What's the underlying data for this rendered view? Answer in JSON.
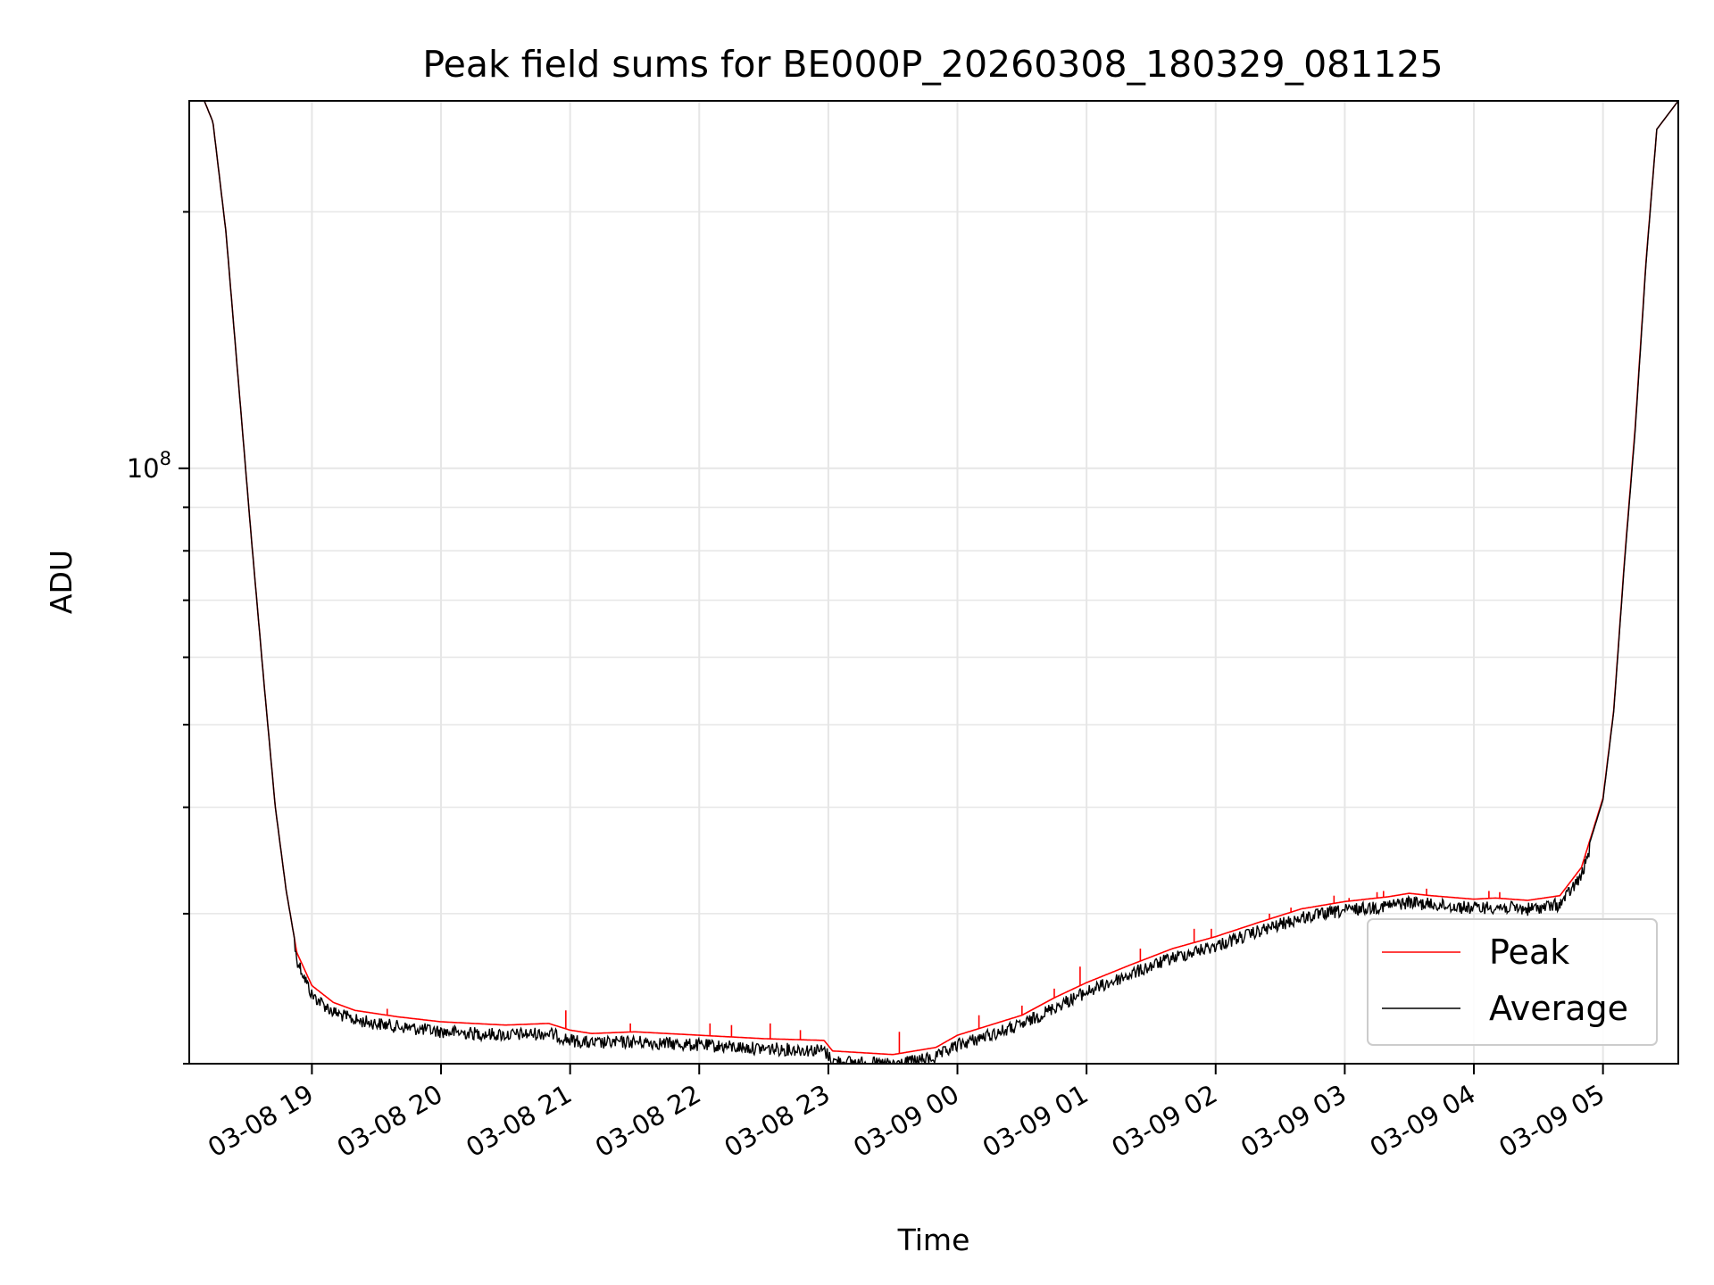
{
  "chart_data": {
    "type": "line",
    "title": "Peak field sums for BE000P_20260308_180329_081125",
    "xlabel": "Time",
    "ylabel": "ADU",
    "y_scale": "log",
    "y_tick_label": "10^8",
    "y_tick_base": "10",
    "y_tick_exp": "8",
    "xlim": [
      "2026-03-08 18:03",
      "2026-03-09 05:35"
    ],
    "ylim": [
      20000000,
      270000000
    ],
    "x_tick_labels": [
      "03-08 19",
      "03-08 20",
      "03-08 21",
      "03-08 22",
      "03-08 23",
      "03-09 00",
      "03-09 01",
      "03-09 02",
      "03-09 03",
      "03-09 04",
      "03-09 05"
    ],
    "x_ticks": [
      "2026-03-08 19:00",
      "2026-03-08 20:00",
      "2026-03-08 21:00",
      "2026-03-08 22:00",
      "2026-03-08 23:00",
      "2026-03-09 00:00",
      "2026-03-09 01:00",
      "2026-03-09 02:00",
      "2026-03-09 03:00",
      "2026-03-09 04:00",
      "2026-03-09 05:00"
    ],
    "grid": true,
    "legend_position": "lower-right",
    "series": [
      {
        "name": "Peak",
        "color": "#ff0000",
        "x": [
          "2026-03-08 18:03",
          "2026-03-08 18:10",
          "2026-03-08 18:14",
          "2026-03-08 18:20",
          "2026-03-08 18:26",
          "2026-03-08 18:32",
          "2026-03-08 18:38",
          "2026-03-08 18:43",
          "2026-03-08 18:48",
          "2026-03-08 18:53",
          "2026-03-08 19:00",
          "2026-03-08 19:10",
          "2026-03-08 19:20",
          "2026-03-08 19:40",
          "2026-03-08 20:00",
          "2026-03-08 20:30",
          "2026-03-08 20:50",
          "2026-03-08 21:00",
          "2026-03-08 21:10",
          "2026-03-08 21:30",
          "2026-03-08 22:00",
          "2026-03-08 22:30",
          "2026-03-08 22:58",
          "2026-03-08 23:02",
          "2026-03-08 23:30",
          "2026-03-08 23:50",
          "2026-03-09 00:00",
          "2026-03-09 00:30",
          "2026-03-09 00:45",
          "2026-03-09 01:00",
          "2026-03-09 01:20",
          "2026-03-09 01:40",
          "2026-03-09 02:00",
          "2026-03-09 02:20",
          "2026-03-09 02:40",
          "2026-03-09 03:00",
          "2026-03-09 03:20",
          "2026-03-09 03:30",
          "2026-03-09 03:40",
          "2026-03-09 04:00",
          "2026-03-09 04:10",
          "2026-03-09 04:25",
          "2026-03-09 04:40",
          "2026-03-09 04:50",
          "2026-03-09 05:00",
          "2026-03-09 05:05",
          "2026-03-09 05:10",
          "2026-03-09 05:15",
          "2026-03-09 05:20",
          "2026-03-09 05:25",
          "2026-03-09 05:35"
        ],
        "values": [
          270000000,
          270000000,
          255000000,
          190000000,
          125000000,
          82000000,
          55000000,
          40000000,
          32000000,
          27000000,
          24700000,
          23600000,
          23100000,
          22700000,
          22400000,
          22200000,
          22300000,
          21900000,
          21700000,
          21800000,
          21600000,
          21400000,
          21300000,
          20700000,
          20500000,
          20900000,
          21600000,
          22800000,
          23900000,
          24900000,
          26100000,
          27300000,
          28200000,
          29300000,
          30400000,
          31000000,
          31400000,
          31700000,
          31500000,
          31200000,
          31300000,
          31100000,
          31500000,
          34000000,
          41000000,
          52000000,
          78000000,
          112000000,
          175000000,
          250000000,
          270000000
        ],
        "spikes": [
          {
            "x": "2026-03-08 19:35",
            "y": 23200000
          },
          {
            "x": "2026-03-08 20:58",
            "y": 23100000
          },
          {
            "x": "2026-03-08 21:28",
            "y": 22300000
          },
          {
            "x": "2026-03-08 22:05",
            "y": 22300000
          },
          {
            "x": "2026-03-08 22:15",
            "y": 22200000
          },
          {
            "x": "2026-03-08 22:33",
            "y": 22300000
          },
          {
            "x": "2026-03-08 22:47",
            "y": 21900000
          },
          {
            "x": "2026-03-08 23:33",
            "y": 21800000
          },
          {
            "x": "2026-03-09 00:10",
            "y": 22800000
          },
          {
            "x": "2026-03-09 00:30",
            "y": 23400000
          },
          {
            "x": "2026-03-09 00:45",
            "y": 24500000
          },
          {
            "x": "2026-03-09 00:57",
            "y": 26000000
          },
          {
            "x": "2026-03-09 01:25",
            "y": 27300000
          },
          {
            "x": "2026-03-09 01:50",
            "y": 28800000
          },
          {
            "x": "2026-03-09 01:58",
            "y": 28800000
          },
          {
            "x": "2026-03-09 02:25",
            "y": 30000000
          },
          {
            "x": "2026-03-09 02:35",
            "y": 30500000
          },
          {
            "x": "2026-03-09 02:55",
            "y": 31500000
          },
          {
            "x": "2026-03-09 03:02",
            "y": 31300000
          },
          {
            "x": "2026-03-09 03:15",
            "y": 31800000
          },
          {
            "x": "2026-03-09 03:18",
            "y": 31900000
          },
          {
            "x": "2026-03-09 03:38",
            "y": 32100000
          },
          {
            "x": "2026-03-09 04:07",
            "y": 31900000
          },
          {
            "x": "2026-03-09 04:12",
            "y": 31800000
          }
        ]
      },
      {
        "name": "Average",
        "color": "#000000",
        "x": [
          "2026-03-08 18:03",
          "2026-03-08 18:10",
          "2026-03-08 18:14",
          "2026-03-08 18:20",
          "2026-03-08 18:26",
          "2026-03-08 18:32",
          "2026-03-08 18:38",
          "2026-03-08 18:43",
          "2026-03-08 18:48",
          "2026-03-08 18:53",
          "2026-03-08 19:00",
          "2026-03-08 19:10",
          "2026-03-08 19:20",
          "2026-03-08 19:40",
          "2026-03-08 20:00",
          "2026-03-08 20:30",
          "2026-03-08 20:50",
          "2026-03-08 21:00",
          "2026-03-08 21:10",
          "2026-03-08 21:30",
          "2026-03-08 22:00",
          "2026-03-08 22:30",
          "2026-03-08 22:58",
          "2026-03-08 23:02",
          "2026-03-08 23:30",
          "2026-03-08 23:50",
          "2026-03-09 00:00",
          "2026-03-09 00:30",
          "2026-03-09 00:45",
          "2026-03-09 01:00",
          "2026-03-09 01:20",
          "2026-03-09 01:40",
          "2026-03-09 02:00",
          "2026-03-09 02:20",
          "2026-03-09 02:40",
          "2026-03-09 03:00",
          "2026-03-09 03:20",
          "2026-03-09 03:30",
          "2026-03-09 03:40",
          "2026-03-09 04:00",
          "2026-03-09 04:10",
          "2026-03-09 04:25",
          "2026-03-09 04:40",
          "2026-03-09 04:50",
          "2026-03-09 05:00",
          "2026-03-09 05:05",
          "2026-03-09 05:10",
          "2026-03-09 05:15",
          "2026-03-09 05:20",
          "2026-03-09 05:25",
          "2026-03-09 05:35"
        ],
        "values": [
          270000000,
          270000000,
          255000000,
          190000000,
          125000000,
          82000000,
          55000000,
          40000000,
          32000000,
          27000000,
          24500000,
          23400000,
          22900000,
          22500000,
          22200000,
          22000000,
          22100000,
          21700000,
          21500000,
          21600000,
          21400000,
          21200000,
          21100000,
          20500000,
          20300000,
          20700000,
          21400000,
          22600000,
          23700000,
          24700000,
          25900000,
          27100000,
          28000000,
          29100000,
          30200000,
          30800000,
          31200000,
          31500000,
          31300000,
          31000000,
          31100000,
          30900000,
          31300000,
          33800000,
          40800000,
          51800000,
          77500000,
          111000000,
          174000000,
          250000000,
          270000000
        ],
        "noise_fraction": 0.035
      }
    ]
  }
}
